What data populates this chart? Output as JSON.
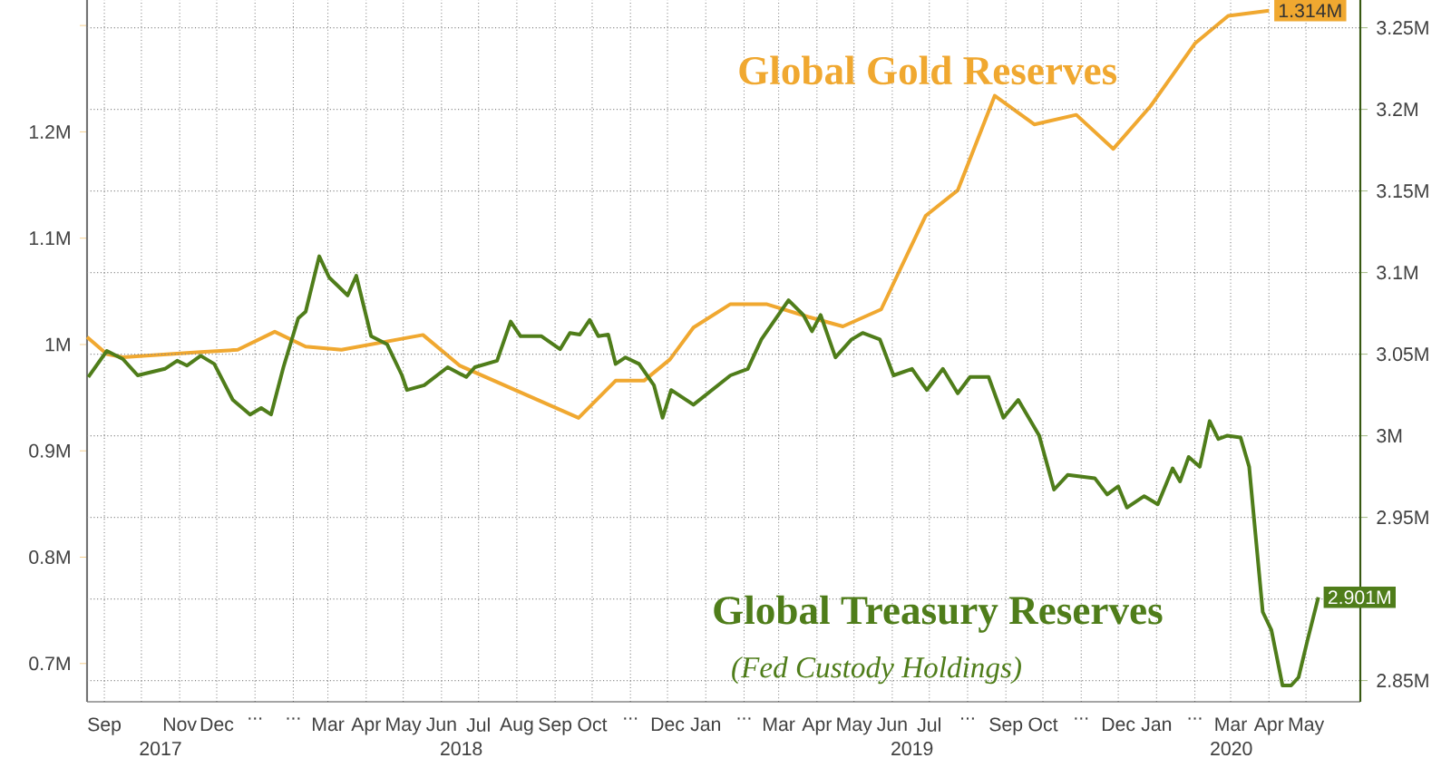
{
  "chart_data": {
    "type": "line",
    "xlim": [
      "2017-09-01",
      "2020-06-28"
    ],
    "ylim": [
      0.664,
      1.324
    ],
    "y2lim": [
      2.837,
      3.267
    ],
    "grid": true,
    "xticks": [
      {
        "value": "2017-09-15",
        "label": "Sep"
      },
      {
        "value": "2017-10-15",
        "label": null
      },
      {
        "value": "2017-11-15",
        "label": "Nov"
      },
      {
        "value": "2017-12-15",
        "label": "Dec"
      },
      {
        "value": "2018-01-15",
        "label": "..."
      },
      {
        "value": "2018-02-15",
        "label": "..."
      },
      {
        "value": "2018-03-15",
        "label": "Mar"
      },
      {
        "value": "2018-04-15",
        "label": "Apr"
      },
      {
        "value": "2018-05-15",
        "label": "May"
      },
      {
        "value": "2018-06-15",
        "label": "Jun"
      },
      {
        "value": "2018-07-15",
        "label": "Jul"
      },
      {
        "value": "2018-08-15",
        "label": "Aug"
      },
      {
        "value": "2018-09-15",
        "label": "Sep"
      },
      {
        "value": "2018-10-15",
        "label": "Oct"
      },
      {
        "value": "2018-11-15",
        "label": "..."
      },
      {
        "value": "2018-12-15",
        "label": "Dec"
      },
      {
        "value": "2019-01-15",
        "label": "Jan"
      },
      {
        "value": "2019-02-15",
        "label": "..."
      },
      {
        "value": "2019-03-15",
        "label": "Mar"
      },
      {
        "value": "2019-04-15",
        "label": "Apr"
      },
      {
        "value": "2019-05-15",
        "label": "May"
      },
      {
        "value": "2019-06-15",
        "label": "Jun"
      },
      {
        "value": "2019-07-15",
        "label": "Jul"
      },
      {
        "value": "2019-08-15",
        "label": "..."
      },
      {
        "value": "2019-09-15",
        "label": "Sep"
      },
      {
        "value": "2019-10-15",
        "label": "Oct"
      },
      {
        "value": "2019-11-15",
        "label": "..."
      },
      {
        "value": "2019-12-15",
        "label": "Dec"
      },
      {
        "value": "2020-01-15",
        "label": "Jan"
      },
      {
        "value": "2020-02-15",
        "label": "..."
      },
      {
        "value": "2020-03-15",
        "label": "Mar"
      },
      {
        "value": "2020-04-15",
        "label": "Apr"
      },
      {
        "value": "2020-05-15",
        "label": "May"
      }
    ],
    "yticks": [
      {
        "value": 0.7,
        "label": "0.7M"
      },
      {
        "value": 0.8,
        "label": "0.8M"
      },
      {
        "value": 0.9,
        "label": "0.9M"
      },
      {
        "value": 1.0,
        "label": "1M"
      },
      {
        "value": 1.1,
        "label": "1.1M"
      },
      {
        "value": 1.2,
        "label": "1.2M"
      },
      {
        "value": 1.3,
        "label": null
      }
    ],
    "y2ticks": [
      {
        "value": 2.85,
        "label": "2.85M"
      },
      {
        "value": 2.9,
        "label": null
      },
      {
        "value": 2.95,
        "label": "2.95M"
      },
      {
        "value": 3.0,
        "label": "3M"
      },
      {
        "value": 3.05,
        "label": "3.05M"
      },
      {
        "value": 3.1,
        "label": "3.1M"
      },
      {
        "value": 3.15,
        "label": "3.15M"
      },
      {
        "value": 3.2,
        "label": "3.2M"
      },
      {
        "value": 3.25,
        "label": "3.25M"
      }
    ],
    "annotations": [
      "(Fed Custody Holdings)",
      "2017",
      "2018",
      "2019",
      "2020"
    ],
    "series": [
      {
        "name": "Global Gold Reserves",
        "color": "#f0a830",
        "axis": "y",
        "x": [
          "2017-09-01",
          "2017-09-17",
          "2017-09-30",
          "2017-12-02",
          "2018-01-01",
          "2018-01-31",
          "2018-02-25",
          "2018-03-26",
          "2018-05-31",
          "2018-06-30",
          "2018-10-04",
          "2018-11-03",
          "2018-11-26",
          "2018-12-17",
          "2019-01-05",
          "2019-02-04",
          "2019-03-05",
          "2019-04-08",
          "2019-05-06",
          "2019-06-06",
          "2019-07-12",
          "2019-08-07",
          "2019-09-06",
          "2019-10-08",
          "2019-11-11",
          "2019-12-11",
          "2020-01-10",
          "2020-02-15",
          "2020-03-13",
          "2020-04-15"
        ],
        "values": [
          1.007,
          0.991,
          0.988,
          0.993,
          0.995,
          1.012,
          0.998,
          0.995,
          1.009,
          0.98,
          0.931,
          0.966,
          0.966,
          0.986,
          1.016,
          1.038,
          1.038,
          1.026,
          1.017,
          1.033,
          1.121,
          1.145,
          1.234,
          1.207,
          1.216,
          1.184,
          1.224,
          1.283,
          1.309,
          1.314
        ],
        "value_labels": [
          null,
          null,
          null,
          null,
          null,
          null,
          null,
          null,
          null,
          null,
          null,
          null,
          null,
          null,
          null,
          null,
          null,
          null,
          null,
          null,
          null,
          null,
          null,
          null,
          null,
          null,
          null,
          null,
          null,
          "1.314M"
        ]
      },
      {
        "name": "Global Treasury Reserves",
        "color": "#4f7d1a",
        "axis": "y2",
        "x": [
          "2017-09-02",
          "2017-09-17",
          "2017-09-30",
          "2017-10-12",
          "2017-11-03",
          "2017-11-13",
          "2017-11-21",
          "2017-12-02",
          "2017-12-13",
          "2017-12-28",
          "2018-01-11",
          "2018-01-20",
          "2018-01-28",
          "2018-02-07",
          "2018-02-19",
          "2018-02-25",
          "2018-03-08",
          "2018-03-16",
          "2018-03-31",
          "2018-04-07",
          "2018-04-19",
          "2018-05-02",
          "2018-05-14",
          "2018-05-18",
          "2018-06-01",
          "2018-06-20",
          "2018-07-05",
          "2018-07-12",
          "2018-07-30",
          "2018-08-10",
          "2018-08-18",
          "2018-09-04",
          "2018-09-19",
          "2018-09-27",
          "2018-10-05",
          "2018-10-13",
          "2018-10-20",
          "2018-10-28",
          "2018-11-03",
          "2018-11-11",
          "2018-11-22",
          "2018-12-04",
          "2018-12-11",
          "2018-12-18",
          "2019-01-05",
          "2019-01-20",
          "2019-02-04",
          "2019-02-18",
          "2019-03-01",
          "2019-03-23",
          "2019-04-04",
          "2019-04-11",
          "2019-04-18",
          "2019-04-30",
          "2019-05-13",
          "2019-05-22",
          "2019-06-05",
          "2019-06-16",
          "2019-07-01",
          "2019-07-13",
          "2019-07-26",
          "2019-08-07",
          "2019-08-17",
          "2019-09-01",
          "2019-09-13",
          "2019-09-25",
          "2019-10-12",
          "2019-10-24",
          "2019-11-04",
          "2019-11-26",
          "2019-12-06",
          "2019-12-15",
          "2019-12-22",
          "2020-01-05",
          "2020-01-16",
          "2020-01-28",
          "2020-02-03",
          "2020-02-10",
          "2020-02-19",
          "2020-02-27",
          "2020-03-05",
          "2020-03-12",
          "2020-03-23",
          "2020-03-30",
          "2020-04-10",
          "2020-04-17",
          "2020-04-26",
          "2020-05-03",
          "2020-05-09",
          "2020-05-16",
          "2020-05-25"
        ],
        "values": [
          3.036,
          3.052,
          3.047,
          3.037,
          3.041,
          3.046,
          3.043,
          3.049,
          3.044,
          3.022,
          3.013,
          3.017,
          3.013,
          3.042,
          3.072,
          3.076,
          3.11,
          3.097,
          3.086,
          3.098,
          3.061,
          3.056,
          3.037,
          3.028,
          3.031,
          3.042,
          3.036,
          3.042,
          3.046,
          3.07,
          3.061,
          3.061,
          3.053,
          3.063,
          3.062,
          3.071,
          3.061,
          3.062,
          3.044,
          3.048,
          3.044,
          3.031,
          3.011,
          3.028,
          3.019,
          3.028,
          3.037,
          3.041,
          3.059,
          3.083,
          3.074,
          3.064,
          3.074,
          3.048,
          3.059,
          3.063,
          3.059,
          3.037,
          3.041,
          3.028,
          3.041,
          3.026,
          3.036,
          3.036,
          3.011,
          3.022,
          3.0,
          2.967,
          2.976,
          2.974,
          2.964,
          2.969,
          2.956,
          2.963,
          2.958,
          2.98,
          2.972,
          2.987,
          2.981,
          3.009,
          2.998,
          3.0,
          2.999,
          2.981,
          2.892,
          2.881,
          2.847,
          2.847,
          2.852,
          2.874,
          2.901
        ],
        "value_labels": [
          null,
          null,
          null,
          null,
          null,
          null,
          null,
          null,
          null,
          null,
          null,
          null,
          null,
          null,
          null,
          null,
          null,
          null,
          null,
          null,
          null,
          null,
          null,
          null,
          null,
          null,
          null,
          null,
          null,
          null,
          null,
          null,
          null,
          null,
          null,
          null,
          null,
          null,
          null,
          null,
          null,
          null,
          null,
          null,
          null,
          null,
          null,
          null,
          null,
          null,
          null,
          null,
          null,
          null,
          null,
          null,
          null,
          null,
          null,
          null,
          null,
          null,
          null,
          null,
          null,
          null,
          null,
          null,
          null,
          null,
          null,
          null,
          null,
          null,
          null,
          null,
          null,
          null,
          null,
          null,
          null,
          null,
          null,
          null,
          null,
          null,
          null,
          null,
          null,
          null,
          "2.901M"
        ]
      }
    ]
  }
}
